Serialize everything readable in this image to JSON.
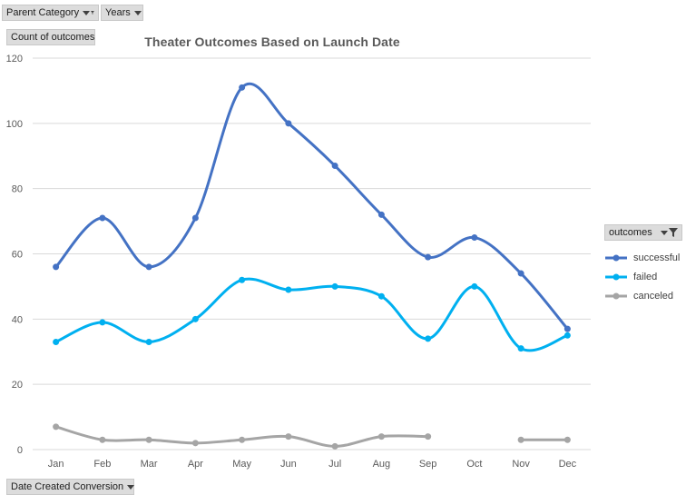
{
  "filters": {
    "parent_category": "Parent Category",
    "years": "Years",
    "values_field": "Count of outcomes",
    "axis_field": "Date Created Conversion",
    "legend_field": "outcomes"
  },
  "colors": {
    "successful": "#4472C4",
    "failed": "#00B0F0",
    "canceled": "#A5A5A5",
    "grid": "#D9D9D9",
    "field_button_bg": "#DCDCDC"
  },
  "chart_data": {
    "type": "line",
    "title": "Theater Outcomes Based on Launch Date",
    "xlabel": "",
    "ylabel": "",
    "categories": [
      "Jan",
      "Feb",
      "Mar",
      "Apr",
      "May",
      "Jun",
      "Jul",
      "Aug",
      "Sep",
      "Oct",
      "Nov",
      "Dec"
    ],
    "ylim": [
      0,
      120
    ],
    "yticks": [
      0,
      20,
      40,
      60,
      80,
      100,
      120
    ],
    "grid": true,
    "smooth": true,
    "legend_position": "right",
    "series": [
      {
        "name": "successful",
        "color": "#4472C4",
        "values": [
          56,
          71,
          56,
          71,
          111,
          100,
          87,
          72,
          59,
          65,
          54,
          37
        ]
      },
      {
        "name": "failed",
        "color": "#00B0F0",
        "values": [
          33,
          39,
          33,
          40,
          52,
          49,
          50,
          47,
          34,
          50,
          31,
          35
        ]
      },
      {
        "name": "canceled",
        "color": "#A5A5A5",
        "values": [
          7,
          3,
          3,
          2,
          3,
          4,
          1,
          4,
          4,
          null,
          3,
          3
        ]
      }
    ]
  }
}
